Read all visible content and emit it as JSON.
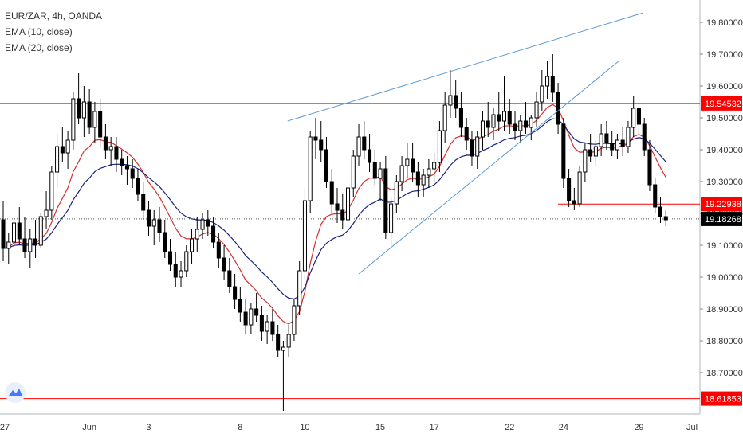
{
  "legend": {
    "symbol": "EUR/ZAR, 4h, OANDA",
    "ema10": "EMA (10, close)",
    "ema20": "EMA (20, close)"
  },
  "colors": {
    "up_candle": "#ffffff",
    "down_candle": "#000000",
    "ema10": "#d32f2f",
    "ema20": "#1a237e",
    "trendline": "#5b9bd5",
    "hline": "#ff0000",
    "price_label_bg": "#ff0000",
    "last_label_bg": "#000000"
  },
  "chart_data": {
    "type": "candlestick",
    "instrument": "EUR/ZAR",
    "timeframe": "4h",
    "source": "OANDA",
    "ylim": [
      18.57,
      19.87
    ],
    "yticks": [
      "19.80000",
      "19.70000",
      "19.60000",
      "19.50000",
      "19.40000",
      "19.30000",
      "19.20000",
      "19.10000",
      "19.00000",
      "18.90000",
      "18.80000",
      "18.70000"
    ],
    "xticks": [
      "27",
      "Jun",
      "3",
      "8",
      "10",
      "15",
      "17",
      "22",
      "24",
      "29",
      "Jul"
    ],
    "horizontal_levels": [
      {
        "label": "19.54532",
        "value": 19.54532
      },
      {
        "label": "19.22938",
        "value": 19.22938
      },
      {
        "label": "18.61853",
        "value": 18.61853
      }
    ],
    "last_price": {
      "label": "19.18268",
      "value": 19.18268
    },
    "candles": [
      [
        19.18,
        19.24,
        19.05,
        19.09
      ],
      [
        19.09,
        19.14,
        19.04,
        19.11
      ],
      [
        19.11,
        19.2,
        19.07,
        19.17
      ],
      [
        19.17,
        19.22,
        19.1,
        19.12
      ],
      [
        19.12,
        19.19,
        19.06,
        19.08
      ],
      [
        19.08,
        19.15,
        19.03,
        19.12
      ],
      [
        19.12,
        19.18,
        19.06,
        19.1
      ],
      [
        19.1,
        19.2,
        19.09,
        19.19
      ],
      [
        19.19,
        19.27,
        19.15,
        19.21
      ],
      [
        19.21,
        19.35,
        19.18,
        19.33
      ],
      [
        19.33,
        19.45,
        19.28,
        19.41
      ],
      [
        19.41,
        19.47,
        19.36,
        19.39
      ],
      [
        19.39,
        19.46,
        19.34,
        19.43
      ],
      [
        19.43,
        19.58,
        19.4,
        19.56
      ],
      [
        19.56,
        19.64,
        19.48,
        19.5
      ],
      [
        19.5,
        19.6,
        19.44,
        19.55
      ],
      [
        19.55,
        19.59,
        19.45,
        19.47
      ],
      [
        19.47,
        19.55,
        19.42,
        19.52
      ],
      [
        19.52,
        19.56,
        19.41,
        19.44
      ],
      [
        19.44,
        19.48,
        19.37,
        19.4
      ],
      [
        19.4,
        19.44,
        19.35,
        19.41
      ],
      [
        19.41,
        19.44,
        19.33,
        19.37
      ],
      [
        19.37,
        19.4,
        19.32,
        19.35
      ],
      [
        19.35,
        19.38,
        19.29,
        19.34
      ],
      [
        19.34,
        19.37,
        19.28,
        19.31
      ],
      [
        19.31,
        19.34,
        19.24,
        19.26
      ],
      [
        19.26,
        19.3,
        19.18,
        19.21
      ],
      [
        19.21,
        19.24,
        19.13,
        19.16
      ],
      [
        19.16,
        19.21,
        19.1,
        19.18
      ],
      [
        19.18,
        19.22,
        19.11,
        19.14
      ],
      [
        19.14,
        19.18,
        19.06,
        19.08
      ],
      [
        19.08,
        19.12,
        19.02,
        19.04
      ],
      [
        19.04,
        19.08,
        18.97,
        19.0
      ],
      [
        19.0,
        19.05,
        18.97,
        19.02
      ],
      [
        19.02,
        19.1,
        19.0,
        19.08
      ],
      [
        19.08,
        19.15,
        19.04,
        19.12
      ],
      [
        19.12,
        19.19,
        19.08,
        19.15
      ],
      [
        19.15,
        19.2,
        19.12,
        19.18
      ],
      [
        19.18,
        19.21,
        19.13,
        19.16
      ],
      [
        19.16,
        19.19,
        19.09,
        19.11
      ],
      [
        19.11,
        19.14,
        19.03,
        19.06
      ],
      [
        19.06,
        19.1,
        18.99,
        19.02
      ],
      [
        19.02,
        19.06,
        18.95,
        18.97
      ],
      [
        18.97,
        19.01,
        18.9,
        18.93
      ],
      [
        18.93,
        18.97,
        18.86,
        18.89
      ],
      [
        18.89,
        18.93,
        18.82,
        18.85
      ],
      [
        18.85,
        18.92,
        18.82,
        18.9
      ],
      [
        18.9,
        18.95,
        18.86,
        18.88
      ],
      [
        18.88,
        18.91,
        18.8,
        18.83
      ],
      [
        18.83,
        18.88,
        18.79,
        18.86
      ],
      [
        18.86,
        18.9,
        18.8,
        18.82
      ],
      [
        18.82,
        18.85,
        18.75,
        18.77
      ],
      [
        18.77,
        18.8,
        18.58,
        18.78
      ],
      [
        18.78,
        18.85,
        18.75,
        18.82
      ],
      [
        18.82,
        18.93,
        18.8,
        18.91
      ],
      [
        18.91,
        19.05,
        18.88,
        19.02
      ],
      [
        19.02,
        19.28,
        18.99,
        19.24
      ],
      [
        19.24,
        19.46,
        19.2,
        19.44
      ],
      [
        19.44,
        19.5,
        19.37,
        19.43
      ],
      [
        19.43,
        19.49,
        19.36,
        19.4
      ],
      [
        19.4,
        19.44,
        19.28,
        19.3
      ],
      [
        19.3,
        19.34,
        19.2,
        19.23
      ],
      [
        19.23,
        19.28,
        19.17,
        19.21
      ],
      [
        19.21,
        19.26,
        19.15,
        19.18
      ],
      [
        19.18,
        19.3,
        19.16,
        19.28
      ],
      [
        19.28,
        19.4,
        19.25,
        19.38
      ],
      [
        19.38,
        19.48,
        19.35,
        19.44
      ],
      [
        19.44,
        19.49,
        19.37,
        19.4
      ],
      [
        19.4,
        19.45,
        19.33,
        19.36
      ],
      [
        19.36,
        19.4,
        19.29,
        19.31
      ],
      [
        19.31,
        19.36,
        19.24,
        19.34
      ],
      [
        19.34,
        19.38,
        19.12,
        19.14
      ],
      [
        19.14,
        19.25,
        19.1,
        19.23
      ],
      [
        19.23,
        19.32,
        19.2,
        19.3
      ],
      [
        19.3,
        19.38,
        19.27,
        19.35
      ],
      [
        19.35,
        19.42,
        19.31,
        19.37
      ],
      [
        19.37,
        19.42,
        19.3,
        19.33
      ],
      [
        19.33,
        19.36,
        19.25,
        19.29
      ],
      [
        19.29,
        19.34,
        19.25,
        19.32
      ],
      [
        19.32,
        19.37,
        19.28,
        19.34
      ],
      [
        19.34,
        19.39,
        19.3,
        19.36
      ],
      [
        19.36,
        19.49,
        19.33,
        19.46
      ],
      [
        19.46,
        19.58,
        19.42,
        19.54
      ],
      [
        19.54,
        19.65,
        19.5,
        19.57
      ],
      [
        19.57,
        19.62,
        19.5,
        19.53
      ],
      [
        19.53,
        19.58,
        19.44,
        19.47
      ],
      [
        19.47,
        19.5,
        19.4,
        19.43
      ],
      [
        19.43,
        19.46,
        19.35,
        19.38
      ],
      [
        19.38,
        19.46,
        19.34,
        19.44
      ],
      [
        19.44,
        19.52,
        19.4,
        19.49
      ],
      [
        19.49,
        19.55,
        19.44,
        19.47
      ],
      [
        19.47,
        19.53,
        19.43,
        19.51
      ],
      [
        19.51,
        19.58,
        19.46,
        19.49
      ],
      [
        19.49,
        19.63,
        19.46,
        19.52
      ],
      [
        19.52,
        19.56,
        19.45,
        19.48
      ],
      [
        19.48,
        19.52,
        19.43,
        19.46
      ],
      [
        19.46,
        19.51,
        19.42,
        19.49
      ],
      [
        19.49,
        19.55,
        19.45,
        19.47
      ],
      [
        19.47,
        19.51,
        19.43,
        19.5
      ],
      [
        19.5,
        19.58,
        19.47,
        19.55
      ],
      [
        19.55,
        19.65,
        19.52,
        19.6
      ],
      [
        19.6,
        19.68,
        19.56,
        19.63
      ],
      [
        19.63,
        19.7,
        19.55,
        19.58
      ],
      [
        19.58,
        19.61,
        19.45,
        19.48
      ],
      [
        19.48,
        19.5,
        19.28,
        19.31
      ],
      [
        19.31,
        19.34,
        19.22,
        19.24
      ],
      [
        19.24,
        19.28,
        19.21,
        19.23
      ],
      [
        19.23,
        19.35,
        19.22,
        19.33
      ],
      [
        19.33,
        19.42,
        19.3,
        19.4
      ],
      [
        19.4,
        19.45,
        19.36,
        19.38
      ],
      [
        19.38,
        19.43,
        19.35,
        19.41
      ],
      [
        19.41,
        19.48,
        19.38,
        19.45
      ],
      [
        19.45,
        19.49,
        19.4,
        19.42
      ],
      [
        19.42,
        19.46,
        19.38,
        19.4
      ],
      [
        19.4,
        19.45,
        19.37,
        19.43
      ],
      [
        19.43,
        19.47,
        19.38,
        19.41
      ],
      [
        19.41,
        19.49,
        19.39,
        19.47
      ],
      [
        19.47,
        19.57,
        19.44,
        19.53
      ],
      [
        19.53,
        19.55,
        19.45,
        19.48
      ],
      [
        19.48,
        19.5,
        19.38,
        19.4
      ],
      [
        19.4,
        19.43,
        19.27,
        19.29
      ],
      [
        19.29,
        19.31,
        19.2,
        19.22
      ],
      [
        19.22,
        19.25,
        19.17,
        19.19
      ],
      [
        19.19,
        19.21,
        19.16,
        19.18
      ]
    ],
    "series": [
      {
        "name": "EMA (10, close)",
        "color": "#d32f2f",
        "period": 10
      },
      {
        "name": "EMA (20, close)",
        "color": "#1a237e",
        "period": 20
      }
    ],
    "trendlines": [
      {
        "from": [
          12,
          19.49
        ],
        "to": [
          27,
          19.83
        ]
      },
      {
        "from": [
          15,
          19.01
        ],
        "to": [
          26,
          19.68
        ]
      }
    ]
  }
}
